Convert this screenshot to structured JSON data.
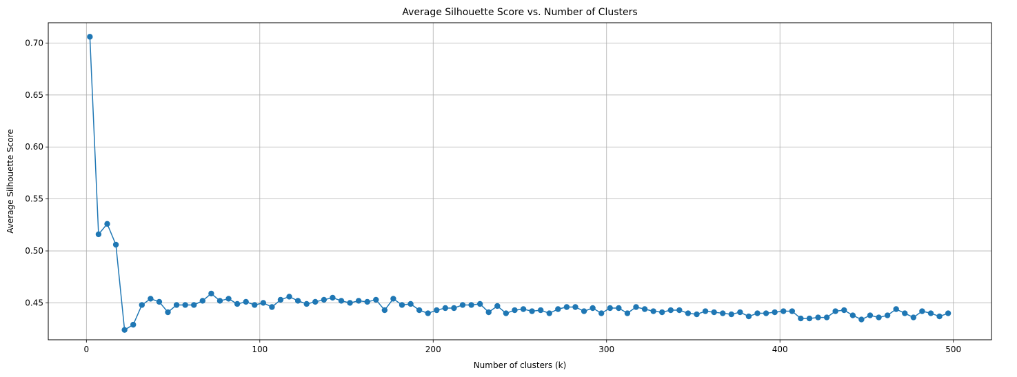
{
  "chart_data": {
    "type": "line",
    "title": "Average Silhouette Score vs. Number of Clusters",
    "xlabel": "Number of clusters (k)",
    "ylabel": "Average Silhouette Score",
    "xlim": [
      -22,
      522
    ],
    "ylim": [
      0.4145,
      0.7195
    ],
    "xticks": [
      0,
      100,
      200,
      300,
      400,
      500
    ],
    "xtick_labels": [
      "0",
      "100",
      "200",
      "300",
      "400",
      "500"
    ],
    "yticks": [
      0.45,
      0.5,
      0.55,
      0.6,
      0.65,
      0.7
    ],
    "ytick_labels": [
      "0.45",
      "0.50",
      "0.55",
      "0.60",
      "0.65",
      "0.70"
    ],
    "grid": true,
    "legend": "none",
    "series": [
      {
        "color": "#1f77b4",
        "marker": "circle",
        "x": [
          2,
          7,
          12,
          17,
          22,
          27,
          32,
          37,
          42,
          47,
          52,
          57,
          62,
          67,
          72,
          77,
          82,
          87,
          92,
          97,
          102,
          107,
          112,
          117,
          122,
          127,
          132,
          137,
          142,
          147,
          152,
          157,
          162,
          167,
          172,
          177,
          182,
          187,
          192,
          197,
          202,
          207,
          212,
          217,
          222,
          227,
          232,
          237,
          242,
          247,
          252,
          257,
          262,
          267,
          272,
          277,
          282,
          287,
          292,
          297,
          302,
          307,
          312,
          317,
          322,
          327,
          332,
          337,
          342,
          347,
          352,
          357,
          362,
          367,
          372,
          377,
          382,
          387,
          392,
          397,
          402,
          407,
          412,
          417,
          422,
          427,
          432,
          437,
          442,
          447,
          452,
          457,
          462,
          467,
          472,
          477,
          482,
          487,
          492,
          497
        ],
        "values": [
          0.706,
          0.516,
          0.526,
          0.506,
          0.424,
          0.429,
          0.448,
          0.454,
          0.451,
          0.441,
          0.448,
          0.448,
          0.448,
          0.452,
          0.459,
          0.452,
          0.454,
          0.449,
          0.451,
          0.448,
          0.45,
          0.446,
          0.453,
          0.456,
          0.452,
          0.449,
          0.451,
          0.453,
          0.455,
          0.452,
          0.45,
          0.452,
          0.451,
          0.453,
          0.443,
          0.454,
          0.448,
          0.449,
          0.443,
          0.44,
          0.443,
          0.445,
          0.445,
          0.448,
          0.448,
          0.449,
          0.441,
          0.447,
          0.44,
          0.443,
          0.444,
          0.442,
          0.443,
          0.44,
          0.444,
          0.446,
          0.446,
          0.442,
          0.445,
          0.44,
          0.445,
          0.445,
          0.44,
          0.446,
          0.444,
          0.442,
          0.441,
          0.443,
          0.443,
          0.44,
          0.439,
          0.442,
          0.441,
          0.44,
          0.439,
          0.441,
          0.437,
          0.44,
          0.44,
          0.441,
          0.442,
          0.442,
          0.435,
          0.435,
          0.436,
          0.436,
          0.442,
          0.443,
          0.438,
          0.434,
          0.438,
          0.436,
          0.438,
          0.444,
          0.44,
          0.436,
          0.442,
          0.44,
          0.437,
          0.44
        ]
      }
    ]
  }
}
